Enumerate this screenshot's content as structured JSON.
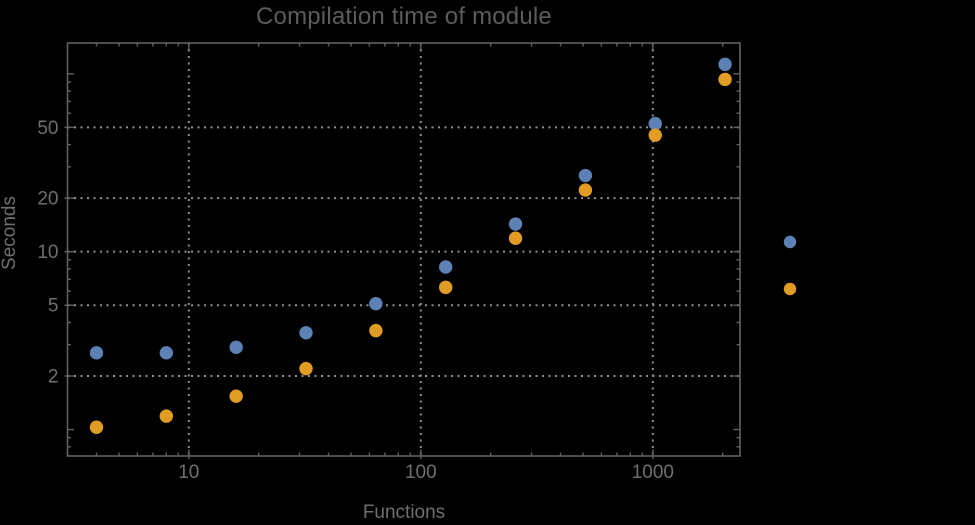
{
  "chart_data": {
    "type": "scatter",
    "title": "Compilation time of module",
    "xlabel": "Functions",
    "ylabel": "Seconds",
    "x_scale": "log",
    "y_scale": "log",
    "xlim": [
      3.0,
      2375
    ],
    "ylim": [
      0.71,
      149
    ],
    "grid": {
      "style": "dotted",
      "x_values": [
        10,
        100,
        1000
      ],
      "y_values": [
        2,
        5,
        10,
        20,
        50
      ]
    },
    "x_tick_labels": [
      {
        "value": 10,
        "label": "10"
      },
      {
        "value": 100,
        "label": "100"
      },
      {
        "value": 1000,
        "label": "1000"
      }
    ],
    "y_tick_labels": [
      {
        "value": 2,
        "label": "2"
      },
      {
        "value": 5,
        "label": "5"
      },
      {
        "value": 10,
        "label": "10"
      },
      {
        "value": 20,
        "label": "20"
      },
      {
        "value": 50,
        "label": "50"
      }
    ],
    "x": [
      4,
      8,
      16,
      32,
      64,
      128,
      256,
      512,
      1024,
      2048
    ],
    "series": [
      {
        "name": "blue-series",
        "color": "#5e81b5",
        "values": [
          2.7,
          2.7,
          2.9,
          3.5,
          5.1,
          8.2,
          14.3,
          26.8,
          52.5,
          113
        ]
      },
      {
        "name": "orange-series",
        "color": "#e19c24",
        "values": [
          1.03,
          1.19,
          1.54,
          2.2,
          3.6,
          6.3,
          11.9,
          22.2,
          45.2,
          93
        ]
      }
    ],
    "legend": {
      "position": "outside-right",
      "labels_visible": false,
      "entries": [
        {
          "series": "blue-series",
          "color": "#5e81b5"
        },
        {
          "series": "orange-series",
          "color": "#e19c24"
        }
      ]
    }
  },
  "colors": {
    "background": "#000000",
    "frame": "#616161",
    "grid": "#8f8f8f",
    "tick_text": "#6f6f6f",
    "title_text": "#5c5c5c",
    "axis_label_text": "#6f6f6f"
  }
}
